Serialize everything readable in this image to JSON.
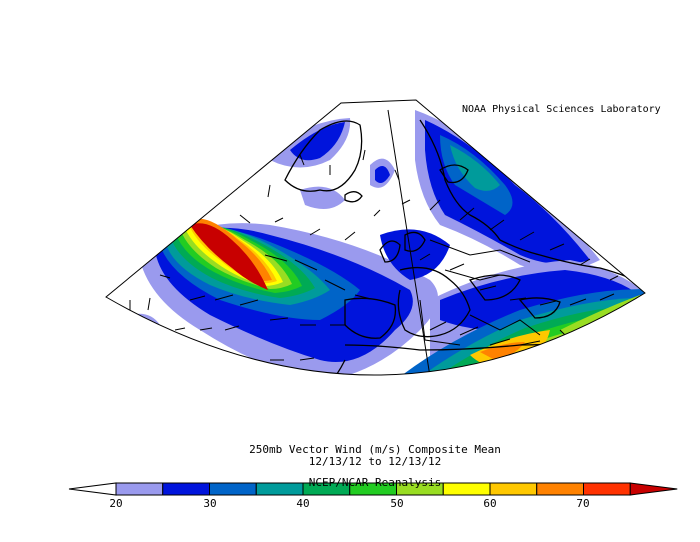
{
  "credit": "NOAA Physical Sciences Laboratory",
  "title": "250mb Vector Wind (m/s) Composite Mean",
  "date_range": "12/13/12  to 12/13/12",
  "source": "NCEP/NCAR Reanalysis",
  "colorbar": {
    "ticks": [
      "20",
      "30",
      "40",
      "50",
      "60",
      "70"
    ],
    "colors": [
      "#ffffff",
      "#9a9aee",
      "#0014dc",
      "#0064c8",
      "#009b9b",
      "#00aa55",
      "#22cc22",
      "#99dd22",
      "#ffff00",
      "#ffc800",
      "#ff8200",
      "#ff3200",
      "#c80000"
    ]
  },
  "map": {
    "region": "North Atlantic / Europe / North Africa",
    "projection": "conic"
  }
}
